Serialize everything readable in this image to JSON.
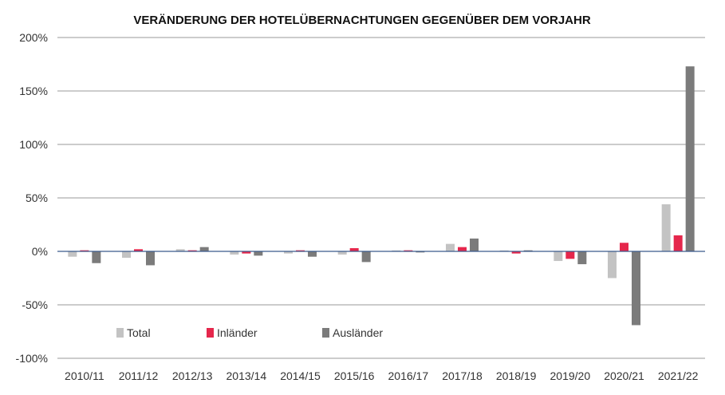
{
  "chart_data": {
    "type": "bar",
    "title": "VERÄNDERUNG DER HOTELÜBERNACHTUNGEN GEGENÜBER DEM VORJAHR",
    "xlabel": "",
    "ylabel": "",
    "ylim": [
      -100,
      200
    ],
    "yticks": [
      200,
      150,
      100,
      50,
      0,
      -50,
      -100
    ],
    "ytick_labels": [
      "200%",
      "150%",
      "100%",
      "50%",
      "0%",
      "-50%",
      "-100%"
    ],
    "grid": true,
    "legend_position": "bottom-left",
    "categories": [
      "2010/11",
      "2011/12",
      "2012/13",
      "2013/14",
      "2014/15",
      "2015/16",
      "2016/17",
      "2017/18",
      "2018/19",
      "2019/20",
      "2020/21",
      "2021/22"
    ],
    "series": [
      {
        "name": "Total",
        "color": "#c3c3c3",
        "values": [
          -5,
          -6,
          2,
          -3,
          -2,
          -3,
          0,
          7,
          0,
          -9,
          -25,
          44
        ]
      },
      {
        "name": "Inländer",
        "color": "#e5274c",
        "values": [
          1,
          2,
          1,
          -2,
          1,
          3,
          1,
          4,
          -2,
          -7,
          8,
          15
        ]
      },
      {
        "name": "Ausländer",
        "color": "#7b7b7b",
        "values": [
          -11,
          -13,
          4,
          -4,
          -5,
          -10,
          -1,
          12,
          1,
          -12,
          -69,
          173
        ]
      }
    ]
  }
}
